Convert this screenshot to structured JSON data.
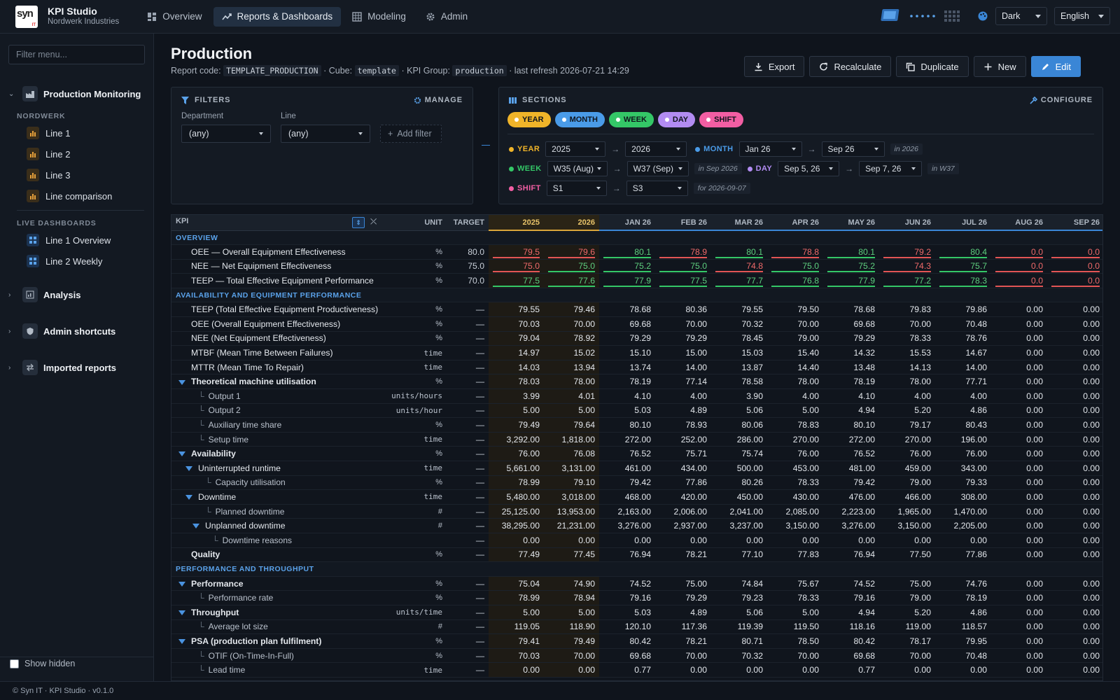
{
  "app": {
    "logo_text": "syn",
    "logo_sub": "IT",
    "name": "KPI Studio",
    "org": "Nordwerk Industries"
  },
  "nav": {
    "tabs": [
      {
        "label": "Overview",
        "icon": "dashboard-icon"
      },
      {
        "label": "Reports & Dashboards",
        "icon": "trend-icon"
      },
      {
        "label": "Modeling",
        "icon": "grid-icon"
      },
      {
        "label": "Admin",
        "icon": "gear-icon"
      }
    ],
    "active": 1
  },
  "topright": {
    "theme": "Dark",
    "language": "English"
  },
  "sidebar": {
    "filter_placeholder": "Filter menu...",
    "group_production": "Production Monitoring",
    "section_nordwerk": "NORDWERK",
    "lines": [
      "Line 1",
      "Line 2",
      "Line 3",
      "Line comparison"
    ],
    "section_live": "LIVE DASHBOARDS",
    "dashboards": [
      "Line 1 Overview",
      "Line 2 Weekly"
    ],
    "groups": [
      "Analysis",
      "Admin shortcuts",
      "Imported reports"
    ],
    "show_hidden": "Show hidden"
  },
  "footer": "© Syn IT · KPI Studio · v0.1.0",
  "report": {
    "title": "Production",
    "code_label": "Report code:",
    "code": "TEMPLATE_PRODUCTION",
    "cube_label": "· Cube:",
    "cube": "template",
    "group_label": "· KPI Group:",
    "group": "production",
    "refresh": "· last refresh 2026-07-21 14:29"
  },
  "actions": {
    "export": "Export",
    "recalc": "Recalculate",
    "duplicate": "Duplicate",
    "new": "New",
    "edit": "Edit"
  },
  "filters": {
    "title": "FILTERS",
    "manage": "MANAGE",
    "dept_label": "Department",
    "dept_value": "(any)",
    "line_label": "Line",
    "line_value": "(any)",
    "add": "Add filter"
  },
  "sections": {
    "title": "SECTIONS",
    "configure": "CONFIGURE",
    "pills": [
      {
        "label": "YEAR",
        "color": "#f0b429"
      },
      {
        "label": "MONTH",
        "color": "#4a9be8"
      },
      {
        "label": "WEEK",
        "color": "#34c767"
      },
      {
        "label": "DAY",
        "color": "#b28cf2"
      },
      {
        "label": "SHIFT",
        "color": "#f25ea3"
      }
    ],
    "year": {
      "label": "YEAR",
      "from": "2025",
      "to": "2026"
    },
    "month": {
      "label": "MONTH",
      "from": "Jan 26",
      "to": "Sep 26",
      "hint": "in 2026"
    },
    "week": {
      "label": "WEEK",
      "from": "W35 (Aug)",
      "to": "W37 (Sep)",
      "hint": "in Sep 2026"
    },
    "day": {
      "label": "DAY",
      "from": "Sep 5, 26",
      "to": "Sep 7, 26",
      "hint": "in W37"
    },
    "shift": {
      "label": "SHIFT",
      "from": "S1",
      "to": "S3",
      "hint": "for 2026-09-07"
    }
  },
  "table": {
    "headers": {
      "kpi": "KPI",
      "unit": "UNIT",
      "target": "TARGET",
      "years": [
        "2025",
        "2026"
      ],
      "months": [
        "JAN 26",
        "FEB 26",
        "MAR 26",
        "APR 26",
        "MAY 26",
        "JUN 26",
        "JUL 26",
        "AUG 26",
        "SEP 26"
      ]
    },
    "rows": [
      {
        "type": "section",
        "label": "OVERVIEW"
      },
      {
        "type": "cmp",
        "label": "OEE — Overall Equipment Effectiveness",
        "unit": "%",
        "target": "80.0",
        "vals": [
          "79.5",
          "79.6",
          "80.1",
          "78.9",
          "80.1",
          "78.8",
          "80.1",
          "79.2",
          "80.4",
          "0.0",
          "0.0"
        ],
        "st": [
          "r",
          "r",
          "g",
          "r",
          "g",
          "r",
          "g",
          "r",
          "g",
          "r",
          "r"
        ]
      },
      {
        "type": "cmp",
        "label": "NEE — Net Equipment Effectiveness",
        "unit": "%",
        "target": "75.0",
        "vals": [
          "75.0",
          "75.0",
          "75.2",
          "75.0",
          "74.8",
          "75.0",
          "75.2",
          "74.3",
          "75.7",
          "0.0",
          "0.0"
        ],
        "st": [
          "r",
          "g",
          "g",
          "g",
          "r",
          "g",
          "g",
          "r",
          "g",
          "r",
          "r"
        ]
      },
      {
        "type": "cmp",
        "label": "TEEP — Total Effective Equipment Performance",
        "unit": "%",
        "target": "70.0",
        "vals": [
          "77.5",
          "77.6",
          "77.9",
          "77.5",
          "77.7",
          "76.8",
          "77.9",
          "77.2",
          "78.3",
          "0.0",
          "0.0"
        ],
        "st": [
          "g",
          "g",
          "g",
          "g",
          "g",
          "g",
          "g",
          "g",
          "g",
          "r",
          "r"
        ]
      },
      {
        "type": "section",
        "label": "AVAILABILITY AND EQUIPMENT PERFORMANCE"
      },
      {
        "type": "row",
        "level": 0,
        "label": "TEEP (Total Effective Equipment Productiveness)",
        "unit": "%",
        "target": "—",
        "vals": [
          "79.55",
          "79.46",
          "78.68",
          "80.36",
          "79.55",
          "79.50",
          "78.68",
          "79.83",
          "79.86",
          "0.00",
          "0.00"
        ]
      },
      {
        "type": "row",
        "level": 0,
        "label": "OEE (Overall Equipment Effectiveness)",
        "unit": "%",
        "target": "—",
        "vals": [
          "70.03",
          "70.00",
          "69.68",
          "70.00",
          "70.32",
          "70.00",
          "69.68",
          "70.00",
          "70.48",
          "0.00",
          "0.00"
        ]
      },
      {
        "type": "row",
        "level": 0,
        "label": "NEE (Net Equipment Effectiveness)",
        "unit": "%",
        "target": "—",
        "vals": [
          "79.04",
          "78.92",
          "79.29",
          "79.29",
          "78.45",
          "79.00",
          "79.29",
          "78.33",
          "78.76",
          "0.00",
          "0.00"
        ]
      },
      {
        "type": "row",
        "level": 0,
        "label": "MTBF (Mean Time Between Failures)",
        "unit": "time",
        "target": "—",
        "vals": [
          "14.97",
          "15.02",
          "15.10",
          "15.00",
          "15.03",
          "15.40",
          "14.32",
          "15.53",
          "14.67",
          "0.00",
          "0.00"
        ]
      },
      {
        "type": "row",
        "level": 0,
        "label": "MTTR (Mean Time To Repair)",
        "unit": "time",
        "target": "—",
        "vals": [
          "14.03",
          "13.94",
          "13.74",
          "14.00",
          "13.87",
          "14.40",
          "13.48",
          "14.13",
          "14.00",
          "0.00",
          "0.00"
        ]
      },
      {
        "type": "group",
        "level": 0,
        "label": "Theoretical machine utilisation",
        "unit": "%",
        "target": "—",
        "vals": [
          "78.03",
          "78.00",
          "78.19",
          "77.14",
          "78.58",
          "78.00",
          "78.19",
          "78.00",
          "77.71",
          "0.00",
          "0.00"
        ]
      },
      {
        "type": "child",
        "level": 1,
        "label": "Output 1",
        "unit": "units/hours",
        "target": "—",
        "vals": [
          "3.99",
          "4.01",
          "4.10",
          "4.00",
          "3.90",
          "4.00",
          "4.10",
          "4.00",
          "4.00",
          "0.00",
          "0.00"
        ]
      },
      {
        "type": "child",
        "level": 1,
        "label": "Output 2",
        "unit": "units/hour",
        "target": "—",
        "vals": [
          "5.00",
          "5.00",
          "5.03",
          "4.89",
          "5.06",
          "5.00",
          "4.94",
          "5.20",
          "4.86",
          "0.00",
          "0.00"
        ]
      },
      {
        "type": "child",
        "level": 1,
        "label": "Auxiliary time share",
        "unit": "%",
        "target": "—",
        "vals": [
          "79.49",
          "79.64",
          "80.10",
          "78.93",
          "80.06",
          "78.83",
          "80.10",
          "79.17",
          "80.43",
          "0.00",
          "0.00"
        ]
      },
      {
        "type": "child",
        "level": 1,
        "label": "Setup time",
        "unit": "time",
        "target": "—",
        "vals": [
          "3,292.00",
          "1,818.00",
          "272.00",
          "252.00",
          "286.00",
          "270.00",
          "272.00",
          "270.00",
          "196.00",
          "0.00",
          "0.00"
        ]
      },
      {
        "type": "group",
        "level": 0,
        "label": "Availability",
        "unit": "%",
        "target": "—",
        "vals": [
          "76.00",
          "76.08",
          "76.52",
          "75.71",
          "75.74",
          "76.00",
          "76.52",
          "76.00",
          "76.00",
          "0.00",
          "0.00"
        ]
      },
      {
        "type": "subgroup",
        "level": 1,
        "label": "Uninterrupted runtime",
        "unit": "time",
        "target": "—",
        "vals": [
          "5,661.00",
          "3,131.00",
          "461.00",
          "434.00",
          "500.00",
          "453.00",
          "481.00",
          "459.00",
          "343.00",
          "0.00",
          "0.00"
        ]
      },
      {
        "type": "child",
        "level": 2,
        "label": "Capacity utilisation",
        "unit": "%",
        "target": "—",
        "vals": [
          "78.99",
          "79.10",
          "79.42",
          "77.86",
          "80.26",
          "78.33",
          "79.42",
          "79.00",
          "79.33",
          "0.00",
          "0.00"
        ]
      },
      {
        "type": "subgroup",
        "level": 1,
        "label": "Downtime",
        "unit": "time",
        "target": "—",
        "vals": [
          "5,480.00",
          "3,018.00",
          "468.00",
          "420.00",
          "450.00",
          "430.00",
          "476.00",
          "466.00",
          "308.00",
          "0.00",
          "0.00"
        ]
      },
      {
        "type": "child",
        "level": 2,
        "label": "Planned downtime",
        "unit": "#",
        "target": "—",
        "vals": [
          "25,125.00",
          "13,953.00",
          "2,163.00",
          "2,006.00",
          "2,041.00",
          "2,085.00",
          "2,223.00",
          "1,965.00",
          "1,470.00",
          "0.00",
          "0.00"
        ]
      },
      {
        "type": "subgroup",
        "level": 2,
        "label": "Unplanned downtime",
        "unit": "#",
        "target": "—",
        "vals": [
          "38,295.00",
          "21,231.00",
          "3,276.00",
          "2,937.00",
          "3,237.00",
          "3,150.00",
          "3,276.00",
          "3,150.00",
          "2,205.00",
          "0.00",
          "0.00"
        ]
      },
      {
        "type": "child",
        "level": 3,
        "label": "Downtime reasons",
        "unit": "",
        "target": "—",
        "vals": [
          "0.00",
          "0.00",
          "0.00",
          "0.00",
          "0.00",
          "0.00",
          "0.00",
          "0.00",
          "0.00",
          "0.00",
          "0.00"
        ]
      },
      {
        "type": "boldrow",
        "level": 0,
        "label": "Quality",
        "unit": "%",
        "target": "—",
        "vals": [
          "77.49",
          "77.45",
          "76.94",
          "78.21",
          "77.10",
          "77.83",
          "76.94",
          "77.50",
          "77.86",
          "0.00",
          "0.00"
        ]
      },
      {
        "type": "section",
        "label": "PERFORMANCE AND THROUGHPUT"
      },
      {
        "type": "group",
        "level": 0,
        "label": "Performance",
        "unit": "%",
        "target": "—",
        "vals": [
          "75.04",
          "74.90",
          "74.52",
          "75.00",
          "74.84",
          "75.67",
          "74.52",
          "75.00",
          "74.76",
          "0.00",
          "0.00"
        ]
      },
      {
        "type": "child",
        "level": 1,
        "label": "Performance rate",
        "unit": "%",
        "target": "—",
        "vals": [
          "78.99",
          "78.94",
          "79.16",
          "79.29",
          "79.23",
          "78.33",
          "79.16",
          "79.00",
          "78.19",
          "0.00",
          "0.00"
        ]
      },
      {
        "type": "group",
        "level": 0,
        "label": "Throughput",
        "unit": "units/time",
        "target": "—",
        "vals": [
          "5.00",
          "5.00",
          "5.03",
          "4.89",
          "5.06",
          "5.00",
          "4.94",
          "5.20",
          "4.86",
          "0.00",
          "0.00"
        ]
      },
      {
        "type": "child",
        "level": 1,
        "label": "Average lot size",
        "unit": "#",
        "target": "—",
        "vals": [
          "119.05",
          "118.90",
          "120.10",
          "117.36",
          "119.39",
          "119.50",
          "118.16",
          "119.00",
          "118.57",
          "0.00",
          "0.00"
        ]
      },
      {
        "type": "group",
        "level": 0,
        "label": "PSA (production plan fulfilment)",
        "unit": "%",
        "target": "—",
        "vals": [
          "79.41",
          "79.49",
          "80.42",
          "78.21",
          "80.71",
          "78.50",
          "80.42",
          "78.17",
          "79.95",
          "0.00",
          "0.00"
        ]
      },
      {
        "type": "child",
        "level": 1,
        "label": "OTIF (On-Time-In-Full)",
        "unit": "%",
        "target": "—",
        "vals": [
          "70.03",
          "70.00",
          "69.68",
          "70.00",
          "70.32",
          "70.00",
          "69.68",
          "70.00",
          "70.48",
          "0.00",
          "0.00"
        ]
      },
      {
        "type": "child",
        "level": 1,
        "label": "Lead time",
        "unit": "time",
        "target": "—",
        "vals": [
          "0.00",
          "0.00",
          "0.77",
          "0.00",
          "0.00",
          "0.00",
          "0.77",
          "0.00",
          "0.00",
          "0.00",
          "0.00"
        ]
      }
    ]
  }
}
